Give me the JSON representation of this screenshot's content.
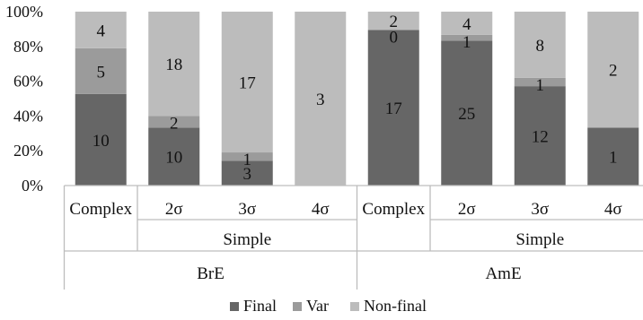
{
  "chart_data": {
    "type": "bar",
    "stacked": "percent",
    "y_ticks": [
      "0%",
      "20%",
      "40%",
      "60%",
      "80%",
      "100%"
    ],
    "ylim": [
      0,
      100
    ],
    "categories": [
      "Complex",
      "2σ",
      "3σ",
      "4σ",
      "Complex",
      "2σ",
      "3σ",
      "4σ"
    ],
    "variety_labels": [
      "Simple",
      "Simple"
    ],
    "group_labels": [
      "BrE",
      "AmE"
    ],
    "series": [
      {
        "name": "Final",
        "color": "#666666",
        "values": [
          10,
          10,
          3,
          0,
          17,
          25,
          12,
          1
        ],
        "labels": [
          "10",
          "10",
          "3",
          "",
          "17",
          "25",
          "12",
          "1"
        ]
      },
      {
        "name": "Var",
        "color": "#9b9b9b",
        "values": [
          5,
          2,
          1,
          0,
          0,
          1,
          1,
          0
        ],
        "labels": [
          "5",
          "2",
          "1",
          "",
          "0",
          "1",
          "1",
          ""
        ]
      },
      {
        "name": "Non-final",
        "color": "#bcbcbc",
        "values": [
          4,
          18,
          17,
          3,
          2,
          4,
          8,
          2
        ],
        "labels": [
          "4",
          "18",
          "17",
          "3",
          "2",
          "4",
          "8",
          "2"
        ]
      }
    ],
    "legend": {
      "position": "bottom",
      "entries": [
        "Final",
        "Var",
        "Non-final"
      ]
    },
    "grid": false
  }
}
